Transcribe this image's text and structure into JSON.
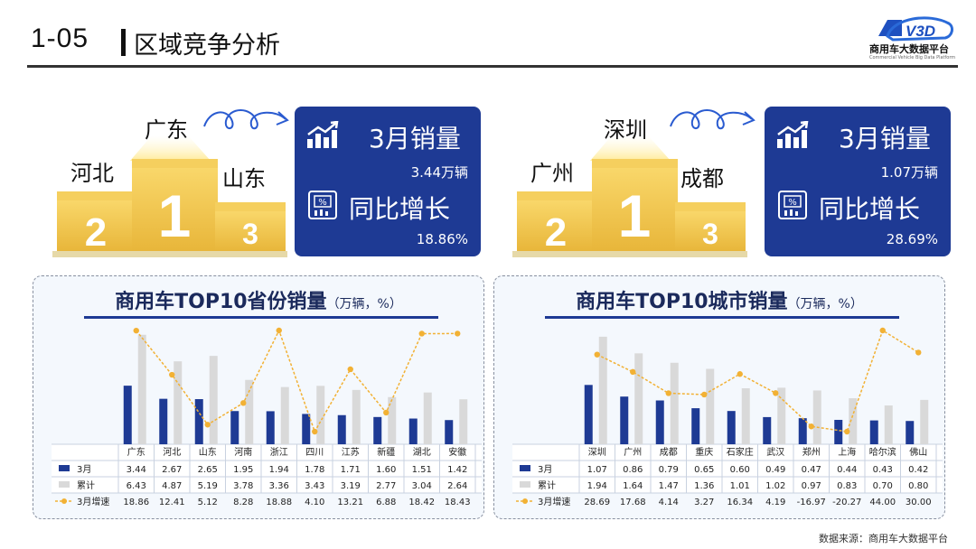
{
  "header": {
    "code": "1-05",
    "title": "区域竞争分析"
  },
  "logo": {
    "emblem": "V3D",
    "name": "商用车大数据平台",
    "subtitle": "Commercial Vehicle Big Data Platform"
  },
  "left_podium": {
    "first": "广东",
    "second": "河北",
    "third": "山东",
    "ranks": [
      "1",
      "2",
      "3"
    ],
    "box": {
      "sales_label": "3月销量",
      "sales_value": "3.44万辆",
      "growth_label": "同比增长",
      "growth_value": "18.86%"
    }
  },
  "right_podium": {
    "first": "深圳",
    "second": "广州",
    "third": "成都",
    "ranks": [
      "1",
      "2",
      "3"
    ],
    "box": {
      "sales_label": "3月销量",
      "sales_value": "1.07万辆",
      "growth_label": "同比增长",
      "growth_value": "28.69%"
    }
  },
  "icons": [
    "rising-bars-icon",
    "percent-chart-icon",
    "curly-arrow-icon"
  ],
  "colors": {
    "navy": "#1e3a94",
    "gray_bar": "#d9d9d9",
    "yellow_line": "#f2b134",
    "panel_bg": "#f4f8fd"
  },
  "chart_data": [
    {
      "type": "bar",
      "title": "商用车TOP10省份销量",
      "unit": "（万辆，%）",
      "categories": [
        "广东",
        "河北",
        "山东",
        "河南",
        "浙江",
        "四川",
        "江苏",
        "新疆",
        "湖北",
        "安徽"
      ],
      "series": [
        {
          "name": "3月",
          "type": "bar",
          "color": "#1e3a94",
          "values": [
            3.44,
            2.67,
            2.65,
            1.95,
            1.94,
            1.78,
            1.71,
            1.6,
            1.51,
            1.42
          ],
          "labels": [
            "3.44",
            "2.67",
            "2.65",
            "1.95",
            "1.94",
            "1.78",
            "1.71",
            "1.60",
            "1.51",
            "1.42"
          ]
        },
        {
          "name": "累计",
          "type": "bar",
          "color": "#d9d9d9",
          "values": [
            6.43,
            4.87,
            5.19,
            3.78,
            3.36,
            3.43,
            3.19,
            2.77,
            3.04,
            2.64
          ],
          "labels": [
            "6.43",
            "4.87",
            "5.19",
            "3.78",
            "3.36",
            "3.43",
            "3.19",
            "2.77",
            "3.04",
            "2.64"
          ]
        },
        {
          "name": "3月增速",
          "type": "line",
          "color": "#f2b134",
          "values": [
            18.86,
            12.41,
            5.12,
            8.28,
            18.88,
            4.1,
            13.21,
            6.88,
            18.42,
            18.43
          ],
          "labels": [
            "18.86",
            "12.41",
            "5.12",
            "8.28",
            "18.88",
            "4.10",
            "13.21",
            "6.88",
            "18.42",
            "18.43"
          ]
        }
      ]
    },
    {
      "type": "bar",
      "title": "商用车TOP10城市销量",
      "unit": "（万辆，%）",
      "categories": [
        "深圳",
        "广州",
        "成都",
        "重庆",
        "石家庄",
        "武汉",
        "郑州",
        "上海",
        "哈尔滨",
        "佛山"
      ],
      "series": [
        {
          "name": "3月",
          "type": "bar",
          "color": "#1e3a94",
          "values": [
            1.07,
            0.86,
            0.79,
            0.65,
            0.6,
            0.49,
            0.47,
            0.44,
            0.43,
            0.42
          ],
          "labels": [
            "1.07",
            "0.86",
            "0.79",
            "0.65",
            "0.60",
            "0.49",
            "0.47",
            "0.44",
            "0.43",
            "0.42"
          ]
        },
        {
          "name": "累计",
          "type": "bar",
          "color": "#d9d9d9",
          "values": [
            1.94,
            1.64,
            1.47,
            1.36,
            1.01,
            1.02,
            0.97,
            0.83,
            0.7,
            0.8
          ],
          "labels": [
            "1.94",
            "1.64",
            "1.47",
            "1.36",
            "1.01",
            "1.02",
            "0.97",
            "0.83",
            "0.70",
            "0.80"
          ]
        },
        {
          "name": "3月增速",
          "type": "line",
          "color": "#f2b134",
          "values": [
            28.69,
            17.68,
            4.14,
            3.27,
            16.34,
            4.19,
            -16.97,
            -20.27,
            44.0,
            30.0
          ],
          "labels": [
            "28.69",
            "17.68",
            "4.14",
            "3.27",
            "16.34",
            "4.19",
            "-16.97",
            "-20.27",
            "44.00",
            "30.00"
          ]
        }
      ]
    }
  ],
  "footer": {
    "source": "数据来源：商用车大数据平台"
  }
}
